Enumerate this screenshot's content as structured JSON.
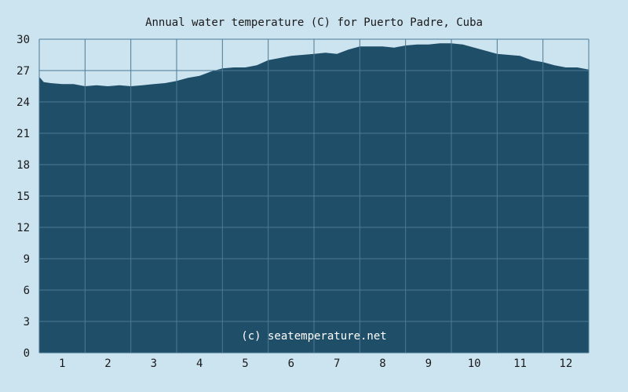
{
  "chart_data": {
    "type": "area",
    "title": "Annual water temperature (C) for Puerto Padre, Cuba",
    "credit": "(c) seatemperature.net",
    "xlabel": "",
    "ylabel": "",
    "x_ticks": [
      "1",
      "2",
      "3",
      "4",
      "5",
      "6",
      "7",
      "8",
      "9",
      "10",
      "11",
      "12"
    ],
    "y_ticks": [
      0,
      3,
      6,
      9,
      12,
      15,
      18,
      21,
      24,
      27,
      30
    ],
    "ylim": [
      0,
      30
    ],
    "xlim": [
      0.5,
      12.5
    ],
    "grid": true,
    "colors": {
      "fill": "#1f4e69",
      "grid": "#4d7a94",
      "background": "#cce3f0"
    },
    "x": [
      0.5,
      0.6,
      0.75,
      1.0,
      1.25,
      1.5,
      1.75,
      2.0,
      2.25,
      2.5,
      2.75,
      3.0,
      3.25,
      3.5,
      3.75,
      4.0,
      4.25,
      4.5,
      4.75,
      5.0,
      5.25,
      5.5,
      5.75,
      6.0,
      6.25,
      6.5,
      6.75,
      7.0,
      7.25,
      7.5,
      7.75,
      8.0,
      8.25,
      8.5,
      8.75,
      9.0,
      9.25,
      9.5,
      9.75,
      10.0,
      10.25,
      10.5,
      10.75,
      11.0,
      11.25,
      11.5,
      11.75,
      12.0,
      12.25,
      12.5
    ],
    "values": [
      26.4,
      25.9,
      25.8,
      25.7,
      25.7,
      25.5,
      25.6,
      25.5,
      25.6,
      25.5,
      25.6,
      25.7,
      25.8,
      26.0,
      26.3,
      26.5,
      26.9,
      27.2,
      27.3,
      27.3,
      27.5,
      28.0,
      28.2,
      28.4,
      28.5,
      28.6,
      28.7,
      28.6,
      29.0,
      29.3,
      29.3,
      29.3,
      29.2,
      29.4,
      29.5,
      29.5,
      29.6,
      29.6,
      29.5,
      29.2,
      28.9,
      28.6,
      28.5,
      28.4,
      28.0,
      27.8,
      27.5,
      27.3,
      27.3,
      27.1
    ]
  }
}
